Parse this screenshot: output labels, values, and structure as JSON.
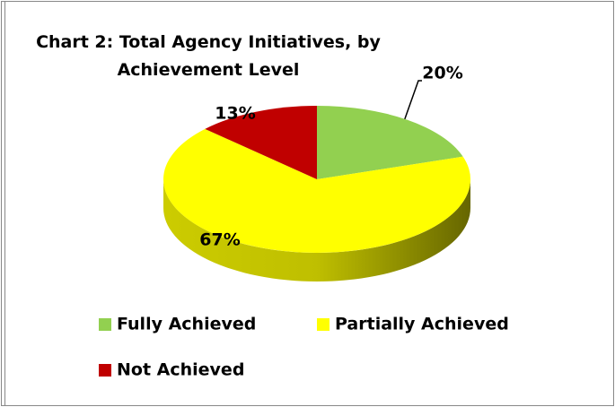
{
  "chart_data": {
    "type": "pie",
    "title": "Chart 2: Total Agency Initiatives, by Achievement Level",
    "categories": [
      "Fully Achieved",
      "Partially Achieved",
      "Not Achieved"
    ],
    "values": [
      20,
      67,
      13
    ],
    "value_labels": [
      "20%",
      "67%",
      "13%"
    ],
    "colors": [
      "#92d050",
      "#ffff00",
      "#c00000"
    ],
    "legend": "bottom"
  }
}
